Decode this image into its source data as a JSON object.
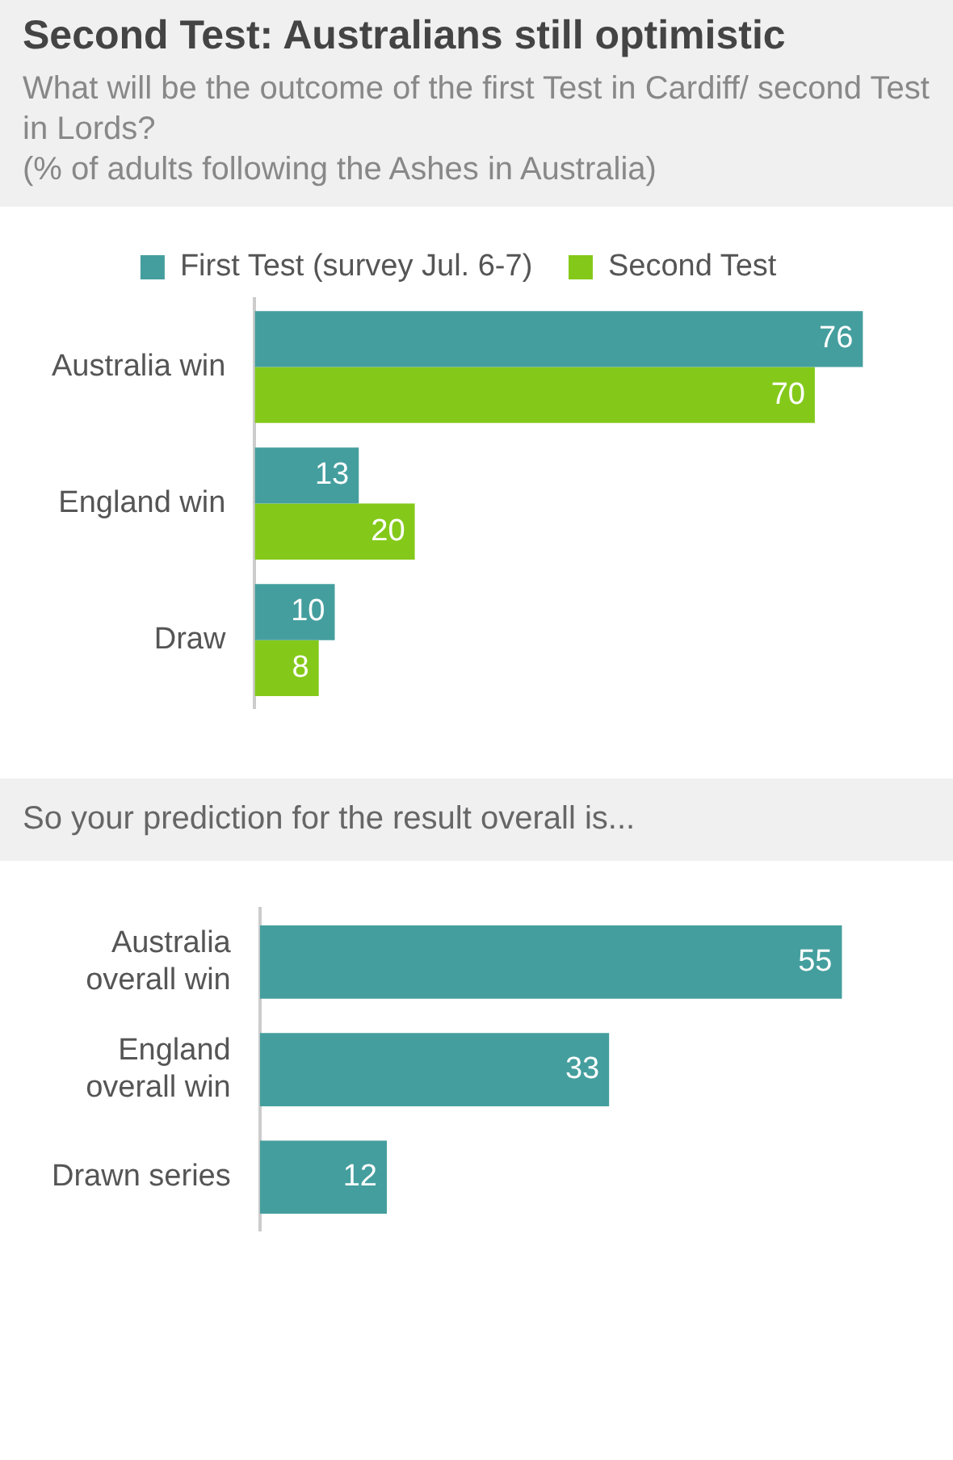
{
  "chart_data": [
    {
      "type": "bar",
      "orientation": "horizontal",
      "title": "Second Test: Australians still optimistic",
      "subtitle": "What will be the outcome of the first Test in Cardiff/ second Test in Lords?",
      "annotations": [
        "(% of adults following the Ashes in Australia)"
      ],
      "categories": [
        "Australia win",
        "England win",
        "Draw"
      ],
      "legend": "top",
      "data_labels": true,
      "series": [
        {
          "name": "First Test (survey Jul. 6-7)",
          "color": "#459e9e",
          "values": [
            76,
            13,
            10
          ]
        },
        {
          "name": "Second Test",
          "color": "#84c91a",
          "values": [
            70,
            20,
            8
          ]
        }
      ]
    },
    {
      "type": "bar",
      "orientation": "horizontal",
      "title": "So your prediction for the result overall is...",
      "categories": [
        "Australia overall win",
        "England overall win",
        "Drawn series"
      ],
      "color": "#459e9e",
      "values": [
        55,
        33,
        12
      ],
      "data_labels": true
    }
  ]
}
